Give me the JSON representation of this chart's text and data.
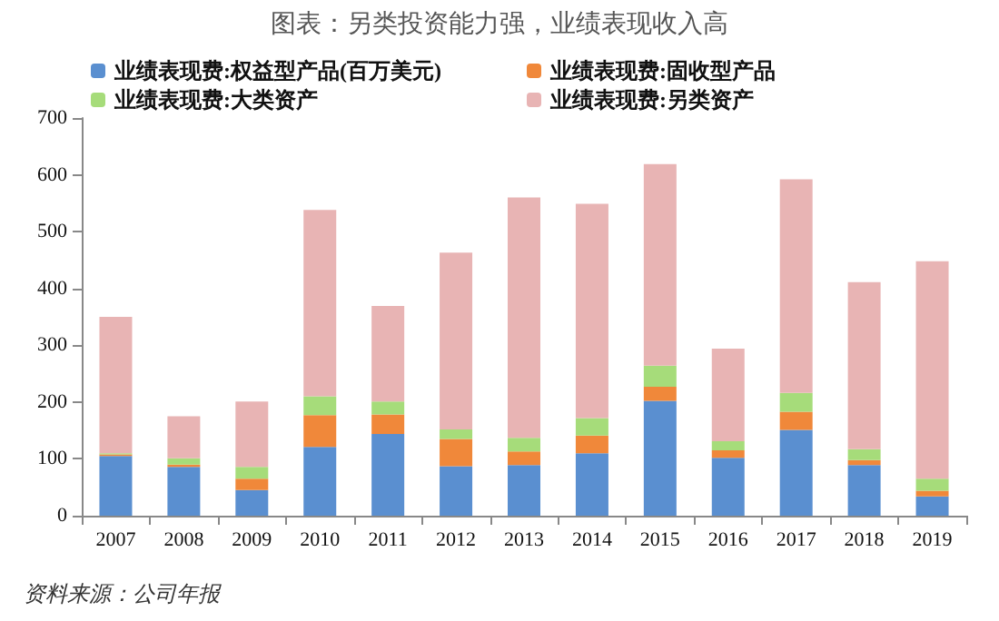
{
  "chart_data": {
    "type": "bar",
    "title": "图表：另类投资能力强，业绩表现收入高",
    "categories": [
      "2007",
      "2008",
      "2009",
      "2010",
      "2011",
      "2012",
      "2013",
      "2014",
      "2015",
      "2016",
      "2017",
      "2018",
      "2019"
    ],
    "stacked": true,
    "series": [
      {
        "name": "业绩表现费:权益型产品(百万美元)",
        "color": "#5a8fd0",
        "values": [
          105,
          86,
          45,
          121,
          144,
          87,
          89,
          110,
          202,
          102,
          151,
          89,
          34
        ]
      },
      {
        "name": "业绩表现费:固收型产品",
        "color": "#f0883a",
        "values": [
          3,
          4,
          20,
          56,
          34,
          48,
          24,
          31,
          25,
          13,
          32,
          9,
          10
        ]
      },
      {
        "name": "业绩表现费:大类资产",
        "color": "#a6dc7a",
        "values": [
          2,
          11,
          21,
          33,
          23,
          17,
          24,
          31,
          37,
          16,
          33,
          19,
          21
        ]
      },
      {
        "name": "业绩表现费:另类资产",
        "color": "#e8b4b4",
        "values": [
          240,
          74,
          115,
          328,
          168,
          311,
          423,
          377,
          355,
          163,
          376,
          294,
          383
        ]
      }
    ],
    "ylim": [
      0,
      700
    ],
    "yticks": [
      0,
      100,
      200,
      300,
      400,
      500,
      600,
      700
    ],
    "grid": false,
    "legend": "top",
    "annotations": [
      "资料来源：公司年报"
    ]
  }
}
